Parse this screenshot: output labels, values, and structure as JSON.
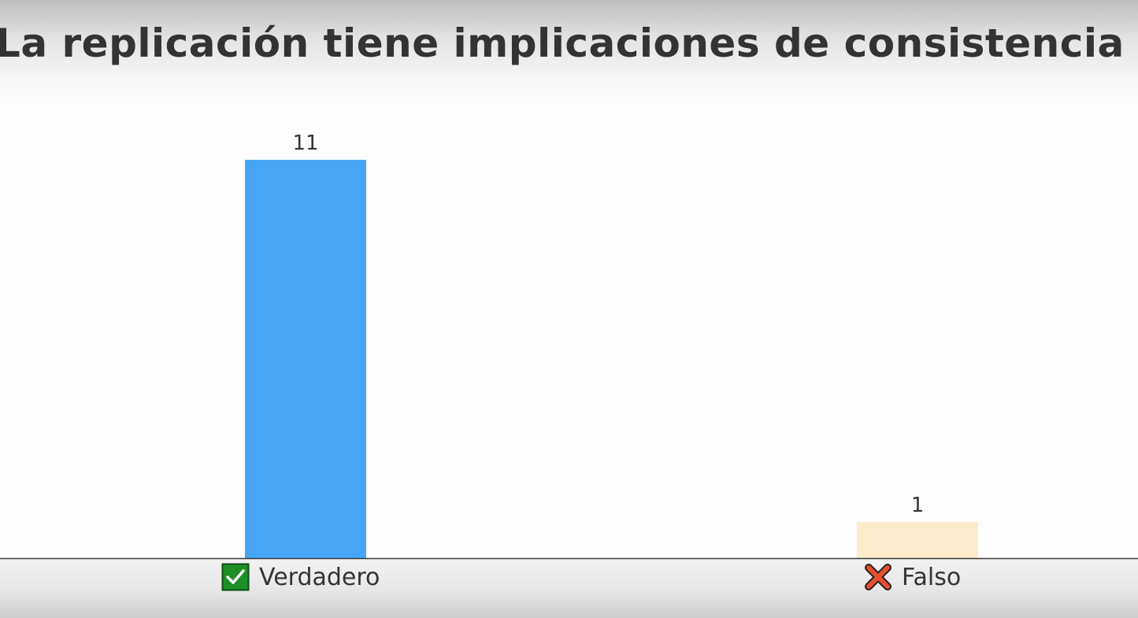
{
  "title": "La replicación tiene implicaciones de consistencia",
  "chart_data": {
    "type": "bar",
    "categories": [
      "Verdadero",
      "Falso"
    ],
    "values": [
      11,
      1
    ],
    "ylim": [
      0,
      11
    ],
    "colors": [
      "#46a5f4",
      "#fbeccd"
    ],
    "category_icons": [
      "check-box-icon",
      "cross-mark-icon"
    ],
    "data_labels": [
      "11",
      "1"
    ],
    "grid": false,
    "legend": "none"
  }
}
